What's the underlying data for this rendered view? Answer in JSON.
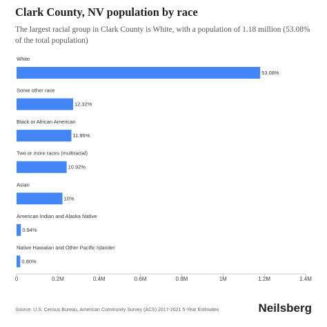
{
  "chart_data": {
    "type": "bar",
    "orientation": "horizontal",
    "title": "Clark County, NV population by race",
    "subtitle": "The largest racial group in Clark County is White, with a population of 1.18 million (53.08% of the total population)",
    "categories": [
      "White",
      "Some other race",
      "Black or African American",
      "Two or more races (multiracial)",
      "Asian",
      "American Indian and Alaska Native",
      "Native Hawaiian and Other Pacific Islander"
    ],
    "values": [
      1180000,
      273900,
      265600,
      242700,
      222300,
      20900,
      17800
    ],
    "value_labels": [
      "53.08%",
      "12.32%",
      "11.95%",
      "10.92%",
      "10%",
      "0.94%",
      "0.80%"
    ],
    "color": "#4285f4",
    "xlim": [
      0,
      1400000
    ],
    "xticks": [
      0,
      {
        "value": 200000,
        "label": "0.2M"
      },
      {
        "value": 400000,
        "label": "0.4M"
      },
      {
        "value": 600000,
        "label": "0.6M"
      },
      {
        "value": 800000,
        "label": "0.8M"
      },
      {
        "value": 1000000,
        "label": "1M"
      },
      {
        "value": 1200000,
        "label": "1.2M"
      },
      {
        "value": 1400000,
        "label": "1.4M"
      }
    ],
    "grid": false,
    "source": "Source: U.S. Census Bureau, American Community Survey (ACS) 2017-2021 5-Year Estimates",
    "brand": "Neilsberg"
  }
}
